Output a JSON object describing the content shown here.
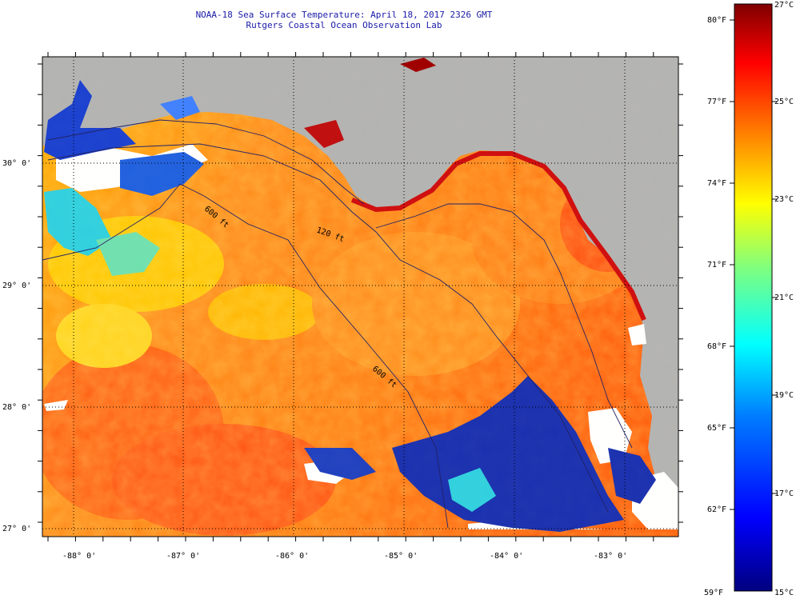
{
  "header": {
    "title": "NOAA-18 Sea Surface Temperature:  April 18, 2017 2326 GMT",
    "subtitle": "Rutgers Coastal Ocean Observation Lab"
  },
  "map": {
    "lon_labels": [
      "-88° 0'",
      "-87° 0'",
      "-86° 0'",
      "-85° 0'",
      "-84° 0'",
      "-83° 0'"
    ],
    "lat_labels": [
      "30° 0'",
      "29° 0'",
      "28° 0'",
      "27° 0'"
    ],
    "isobath_labels": [
      "600 ft",
      "120 ft",
      "600 ft"
    ],
    "colors": {
      "land": "#b3b3b3",
      "cloud": "#ffffff",
      "warm_water": "#ff7a1a",
      "graticule": "#000000"
    }
  },
  "colorbar": {
    "fahrenheit_labels": [
      "80°F",
      "77°F",
      "74°F",
      "71°F",
      "68°F",
      "65°F",
      "62°F",
      "59°F"
    ],
    "celsius_labels": [
      "27°C",
      "25°C",
      "23°C",
      "21°C",
      "19°C",
      "17°C",
      "15°C"
    ],
    "range_c": [
      15,
      27
    ],
    "colors": [
      "#00007f",
      "#0000ff",
      "#007fff",
      "#00ffff",
      "#7fff7f",
      "#ffff00",
      "#ff7f00",
      "#ff0000",
      "#7f0000"
    ]
  }
}
